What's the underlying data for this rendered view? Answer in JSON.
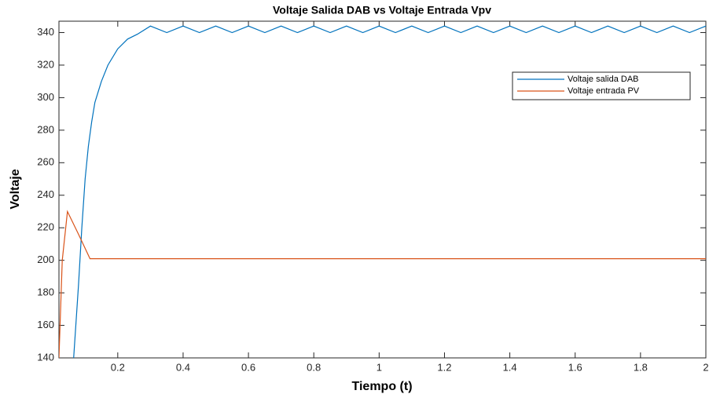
{
  "chart_data": {
    "type": "line",
    "title": "Voltaje Salida DAB vs Voltaje Entrada Vpv",
    "xlabel": "Tiempo (t)",
    "ylabel": "Voltaje",
    "xlim": [
      0.02,
      2
    ],
    "xticks": [
      0.2,
      0.4,
      0.6,
      0.8,
      1,
      1.2,
      1.4,
      1.6,
      1.8,
      2
    ],
    "ylim": [
      140,
      347
    ],
    "yticks": [
      140,
      160,
      180,
      200,
      220,
      240,
      260,
      280,
      300,
      320,
      340
    ],
    "legend": "upper right",
    "series": [
      {
        "name": "Voltaje salida  DAB",
        "color": "#0072bd",
        "x": [
          0.065,
          0.08,
          0.09,
          0.1,
          0.11,
          0.12,
          0.13,
          0.15,
          0.17,
          0.2,
          0.23,
          0.26,
          0.3,
          0.35,
          0.4,
          0.45,
          0.5,
          0.55,
          0.6,
          0.65,
          0.7,
          0.75,
          0.8,
          0.85,
          0.9,
          0.95,
          1,
          1.05,
          1.1,
          1.15,
          1.2,
          1.25,
          1.3,
          1.35,
          1.4,
          1.45,
          1.5,
          1.55,
          1.6,
          1.65,
          1.7,
          1.75,
          1.8,
          1.85,
          1.9,
          1.95,
          2
        ],
        "values": [
          140,
          185,
          220,
          250,
          270,
          285,
          297,
          310,
          320,
          330,
          336,
          339,
          344,
          340,
          344,
          340,
          344,
          340,
          344,
          340,
          344,
          340,
          344,
          340,
          344,
          340,
          344,
          340,
          344,
          340,
          344,
          340,
          344,
          340,
          344,
          340,
          344,
          340,
          344,
          340,
          344,
          340,
          344,
          340,
          344,
          340,
          344
        ]
      },
      {
        "name": "Voltaje entrada PV",
        "color": "#d95319",
        "x": [
          0.02,
          0.03,
          0.046,
          0.08,
          0.115,
          0.5,
          1,
          1.5,
          2
        ],
        "values": [
          140,
          200,
          230,
          216,
          201,
          201,
          201,
          201,
          201
        ]
      }
    ]
  }
}
